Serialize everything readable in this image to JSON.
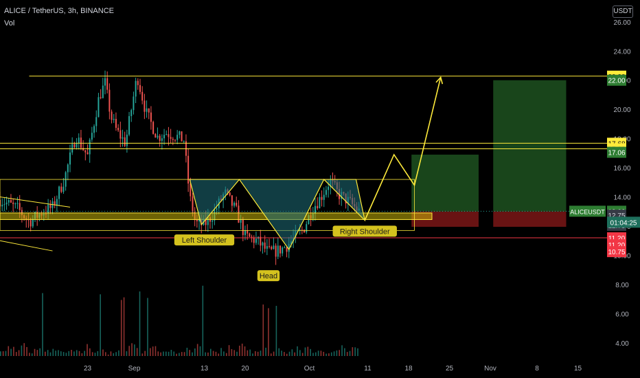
{
  "header": {
    "symbol_line": "ALICE / TetherUS, 3h, BINANCE",
    "indicator": "Vol"
  },
  "currency_button": "USDT",
  "colors": {
    "up": "#26a69a",
    "down": "#ef5350",
    "yellow": "#ffeb3b",
    "pattern_fill": "#1f6f7a",
    "target_green": "#2e7d32",
    "stop_red": "#8b1a1a",
    "red_line": "#f23645"
  },
  "chart_data": {
    "type": "candlestick",
    "y_axis_ticks": [
      "26.00",
      "24.00",
      "22.00",
      "20.00",
      "18.00",
      "16.00",
      "14.00",
      "12.00",
      "10.00",
      "8.00",
      "6.00",
      "4.00"
    ],
    "y_axis_tick_values": [
      26,
      24,
      22,
      20,
      18,
      16,
      14,
      12,
      10,
      8,
      6,
      4
    ],
    "x_axis_labels": [
      "23",
      "Sep",
      "13",
      "20",
      "Oct",
      "11",
      "18",
      "25",
      "Nov",
      "8",
      "15"
    ],
    "x_axis_label_days": [
      -7,
      1,
      13,
      20,
      31,
      41,
      48,
      55,
      62,
      70,
      77
    ],
    "ylim": [
      3,
      27.5
    ],
    "xlim_days": [
      -22,
      82
    ],
    "current_price": "13.02",
    "countdown": "01:04:25",
    "symbol_tag": "ALICEUSDT",
    "price_tags": [
      {
        "value": "22.28",
        "price": 22.28,
        "style": "yellow"
      },
      {
        "value": "22.00",
        "price": 22.0,
        "style": "green"
      },
      {
        "value": "17.68",
        "price": 17.68,
        "style": "yellow"
      },
      {
        "value": "17.30",
        "price": 17.3,
        "style": "yellow"
      },
      {
        "value": "17.06",
        "price": 17.06,
        "style": "green"
      },
      {
        "value": "13.02",
        "price": 13.02,
        "style": "green"
      },
      {
        "value": "12.75",
        "price": 12.75,
        "style": "gray"
      },
      {
        "value": "12.75",
        "price": 12.05,
        "style": "gray"
      },
      {
        "value": "11.20",
        "price": 11.2,
        "style": "red"
      },
      {
        "value": "11.20",
        "price": 10.72,
        "style": "red"
      },
      {
        "value": "10.75",
        "price": 10.25,
        "style": "red"
      }
    ],
    "price_path": [
      [
        -22,
        13.8
      ],
      [
        -19,
        13.2
      ],
      [
        -17,
        12.3
      ],
      [
        -15,
        12.9
      ],
      [
        -13,
        13.3
      ],
      [
        -11,
        15.2
      ],
      [
        -9,
        18.2
      ],
      [
        -7,
        16.8
      ],
      [
        -5,
        20.9
      ],
      [
        -4,
        21.8
      ],
      [
        -3,
        19.5
      ],
      [
        -2,
        18.5
      ],
      [
        -0.5,
        17.7
      ],
      [
        1.5,
        22.3
      ],
      [
        3,
        19.8
      ],
      [
        5,
        18.1
      ],
      [
        6.5,
        18.4
      ],
      [
        8,
        18.2
      ],
      [
        9.5,
        17.9
      ],
      [
        10.5,
        14.0
      ],
      [
        11.5,
        12.2
      ],
      [
        13,
        12.1
      ],
      [
        14.5,
        12.8
      ],
      [
        16.5,
        14.3
      ],
      [
        18.5,
        13.0
      ],
      [
        20,
        11.3
      ],
      [
        22,
        11.0
      ],
      [
        24,
        10.2
      ],
      [
        25.5,
        10.3
      ],
      [
        27,
        10.6
      ],
      [
        28.5,
        11.2
      ],
      [
        30,
        11.8
      ],
      [
        31.5,
        13.2
      ],
      [
        33,
        14.0
      ],
      [
        34.5,
        15.1
      ],
      [
        36,
        14.2
      ],
      [
        38,
        13.6
      ],
      [
        39.5,
        13.02
      ]
    ],
    "volume_heights": [
      0.25,
      0.15,
      0.2,
      0.4,
      0.45,
      0.3,
      0.2,
      0.35,
      0.5,
      0.6,
      0.3,
      0.2,
      0.15,
      0.25,
      0.2,
      0.3,
      0.55,
      0.3,
      0.2,
      0.15,
      0.25,
      0.2,
      0.3,
      0.2,
      0.15,
      0.1,
      0.2,
      0.25,
      0.15,
      0.3,
      0.2,
      0.15,
      0.35,
      0.4,
      0.3,
      0.2,
      0.15,
      0.2,
      0.25,
      0.2,
      0.15,
      0.1
    ],
    "levels": {
      "target_top": 22.28,
      "resistance_a": 17.68,
      "resistance_b": 17.3,
      "neckline_top": 15.2,
      "zone_top": 12.9,
      "zone_bottom": 12.45,
      "support_line": 11.2
    },
    "pattern": {
      "left_shoulder": [
        12.5,
        12.1
      ],
      "head": [
        27.5,
        10.4
      ],
      "right_shoulder": [
        40.5,
        12.4
      ],
      "neckline_points": [
        [
          10.5,
          15.2
        ],
        [
          19,
          15.2
        ],
        [
          33.5,
          15.2
        ],
        [
          39,
          15.2
        ]
      ]
    },
    "projection": [
      [
        40.5,
        12.4
      ],
      [
        45.5,
        16.9
      ],
      [
        49,
        14.8
      ],
      [
        53.5,
        22.2
      ]
    ],
    "trade_boxes": [
      {
        "x0": 48.5,
        "x1": 60,
        "top": 16.9,
        "entry": 13.0,
        "stop": 11.95
      },
      {
        "x0": 62.5,
        "x1": 75,
        "top": 22.0,
        "entry": 13.0,
        "stop": 11.95
      }
    ],
    "annotations": [
      {
        "text": "Left Shoulder",
        "day": 13,
        "price": 11.05
      },
      {
        "text": "Head",
        "day": 24,
        "price": 8.6
      },
      {
        "text": "Right Shoulder",
        "day": 40.5,
        "price": 11.65
      }
    ]
  }
}
